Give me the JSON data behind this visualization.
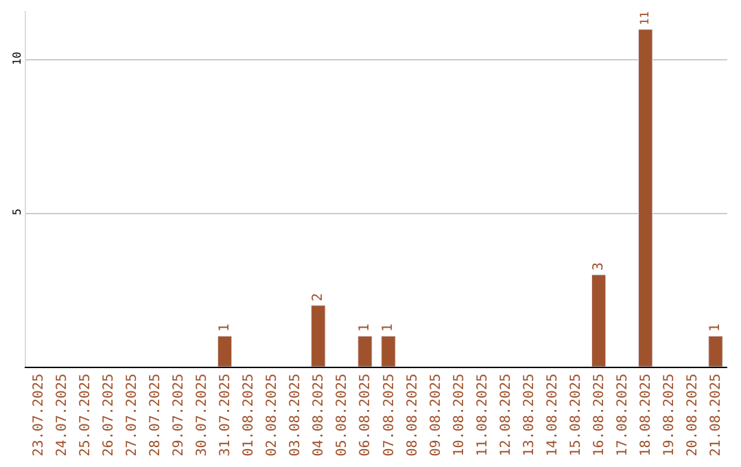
{
  "chart_data": {
    "type": "bar",
    "categories": [
      "23.07.2025",
      "24.07.2025",
      "25.07.2025",
      "26.07.2025",
      "27.07.2025",
      "28.07.2025",
      "29.07.2025",
      "30.07.2025",
      "31.07.2025",
      "01.08.2025",
      "02.08.2025",
      "03.08.2025",
      "04.08.2025",
      "05.08.2025",
      "06.08.2025",
      "07.08.2025",
      "08.08.2025",
      "09.08.2025",
      "10.08.2025",
      "11.08.2025",
      "12.08.2025",
      "13.08.2025",
      "14.08.2025",
      "15.08.2025",
      "16.08.2025",
      "17.08.2025",
      "18.08.2025",
      "19.08.2025",
      "20.08.2025",
      "21.08.2025"
    ],
    "values": [
      null,
      null,
      null,
      null,
      null,
      null,
      null,
      null,
      1,
      null,
      null,
      null,
      2,
      null,
      1,
      1,
      null,
      null,
      null,
      null,
      null,
      null,
      null,
      null,
      3,
      null,
      11,
      null,
      null,
      1
    ],
    "value_labels": [
      null,
      null,
      null,
      null,
      null,
      null,
      null,
      null,
      "1",
      null,
      null,
      null,
      "2",
      null,
      "1",
      "1",
      null,
      null,
      null,
      null,
      null,
      null,
      null,
      null,
      "3",
      null,
      "11",
      null,
      null,
      "1"
    ],
    "color": "#a0522d",
    "ylim": [
      0,
      11.6
    ],
    "yticks": [
      5,
      10
    ],
    "grid": "y"
  }
}
